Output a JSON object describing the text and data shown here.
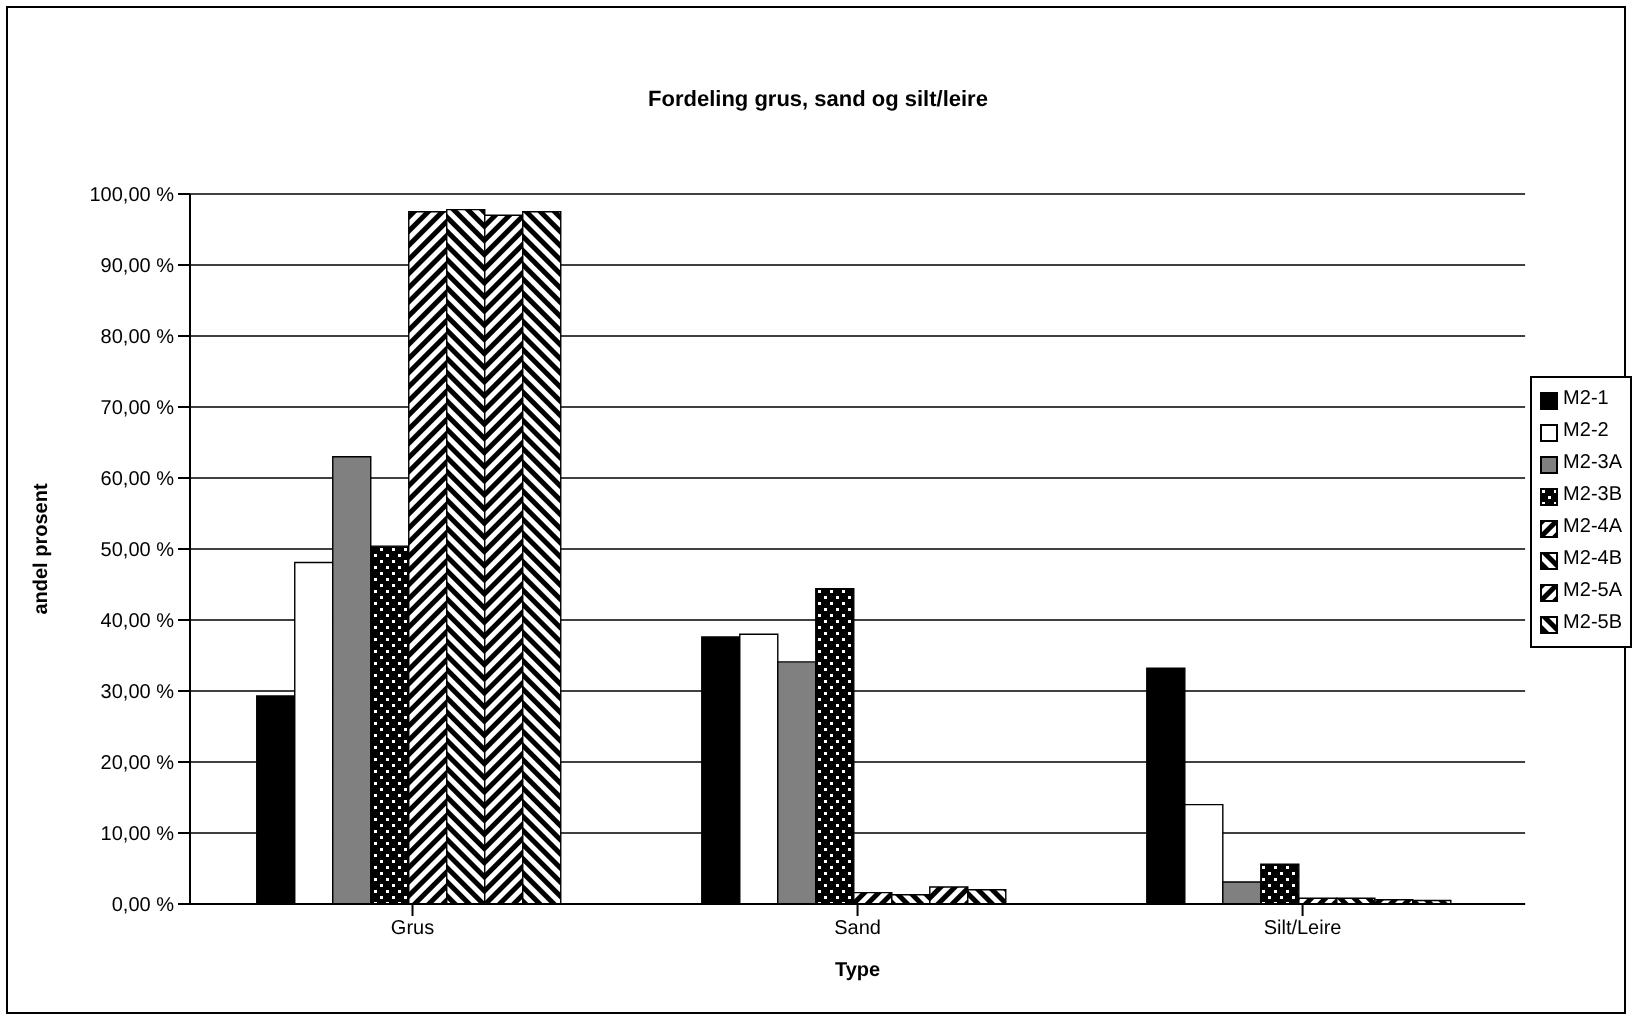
{
  "chart_data": {
    "type": "bar",
    "title": "Fordeling grus, sand og silt/leire",
    "xlabel": "Type",
    "ylabel": "andel prosent",
    "categories": [
      "Grus",
      "Sand",
      "Silt/Leire"
    ],
    "series": [
      {
        "name": "M2-1",
        "color": "#000000",
        "values": [
          29.3,
          37.6,
          33.2
        ]
      },
      {
        "name": "M2-2",
        "color": "#ffffff",
        "values": [
          48.1,
          38.0,
          14.0
        ]
      },
      {
        "name": "M2-3A",
        "color": "#808080",
        "values": [
          63.0,
          34.1,
          3.1
        ]
      },
      {
        "name": "M2-3B",
        "color": "#000000",
        "values": [
          50.4,
          44.4,
          5.6
        ]
      },
      {
        "name": "M2-4A",
        "color": "#000000",
        "values": [
          97.5,
          1.6,
          0.8
        ]
      },
      {
        "name": "M2-4B",
        "color": "#000000",
        "values": [
          97.8,
          1.3,
          0.8
        ]
      },
      {
        "name": "M2-5A",
        "color": "#000000",
        "values": [
          97.0,
          2.4,
          0.6
        ]
      },
      {
        "name": "M2-5B",
        "color": "#000000",
        "values": [
          97.5,
          2.0,
          0.5
        ]
      }
    ],
    "ylim": [
      0,
      100
    ],
    "yticks": [
      {
        "value": 0,
        "label": "0,00 %"
      },
      {
        "value": 10,
        "label": "10,00 %"
      },
      {
        "value": 20,
        "label": "20,00 %"
      },
      {
        "value": 30,
        "label": "30,00 %"
      },
      {
        "value": 40,
        "label": "40,00 %"
      },
      {
        "value": 50,
        "label": "50,00 %"
      },
      {
        "value": 60,
        "label": "60,00 %"
      },
      {
        "value": 70,
        "label": "70,00 %"
      },
      {
        "value": 80,
        "label": "80,00 %"
      },
      {
        "value": 90,
        "label": "90,00 %"
      },
      {
        "value": 100,
        "label": "100,00 %"
      }
    ],
    "grid": "y",
    "legend": "right"
  }
}
